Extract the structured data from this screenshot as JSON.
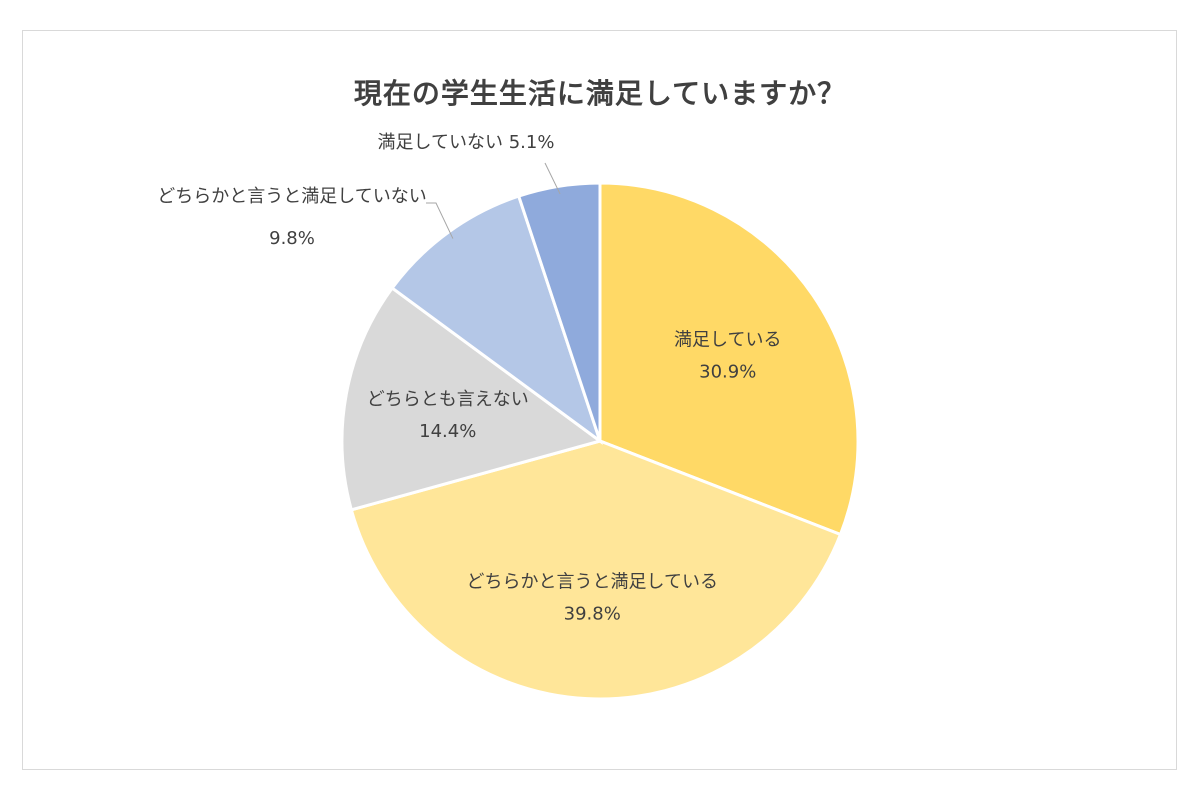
{
  "chart_data": {
    "type": "pie",
    "title": "現在の学生生活に満足していますか？",
    "start_angle_deg": 0,
    "direction": "clockwise",
    "slices": [
      {
        "label": "満足している",
        "value": 30.9,
        "display": "30.9%",
        "color": "#FFD966",
        "label_position": "inside"
      },
      {
        "label": "どちらかと言うと満足している",
        "value": 39.8,
        "display": "39.8%",
        "color": "#FFE699",
        "label_position": "inside"
      },
      {
        "label": "どちらとも言えない",
        "value": 14.4,
        "display": "14.4%",
        "color": "#D9D9D9",
        "label_position": "inside"
      },
      {
        "label": "どちらかと言うと満足していない",
        "value": 9.8,
        "display": "9.8%",
        "color": "#B4C7E7",
        "label_position": "outside"
      },
      {
        "label": "満足していない",
        "value": 5.1,
        "display": "5.1%",
        "color": "#8FAADC",
        "label_position": "outside"
      }
    ]
  }
}
